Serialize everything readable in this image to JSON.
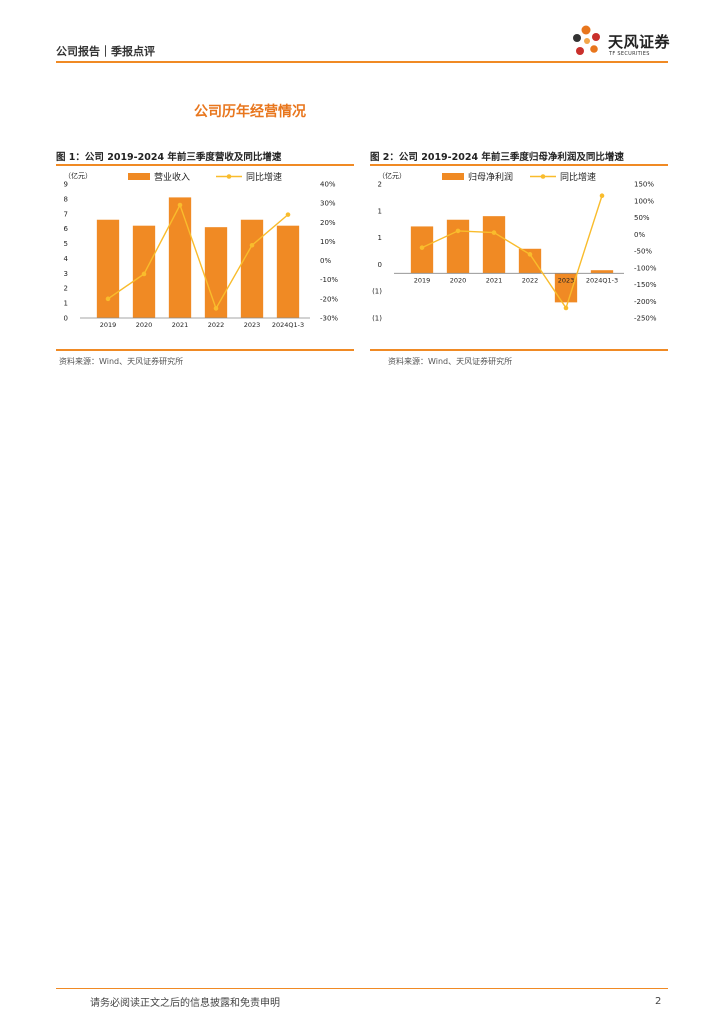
{
  "header": {
    "left_text": "公司报告｜季报点评",
    "brand_name": "天风证券",
    "brand_en": "TF SECURITIES",
    "accent": "#f08a24"
  },
  "section_title": "公司历年经营情况",
  "figures": [
    {
      "title": "图 1：公司 2019-2024 年前三季度营收及同比增速",
      "source": "资料来源：Wind、天风证券研究所"
    },
    {
      "title": "图 2：公司 2019-2024 年前三季度归母净利润及同比增速",
      "source": "资料来源：Wind、天风证券研究所"
    }
  ],
  "chart_data": [
    {
      "type": "bar",
      "unit_label": "（亿元）",
      "categories": [
        "2019",
        "2020",
        "2021",
        "2022",
        "2023",
        "2024Q1-3"
      ],
      "series": [
        {
          "name": "营业收入",
          "type": "bar",
          "axis": "left",
          "color": "#f08a24",
          "values": [
            6.6,
            6.2,
            8.1,
            6.1,
            6.6,
            6.2
          ]
        },
        {
          "name": "同比增速",
          "type": "line",
          "axis": "right",
          "color": "#f9bc2c",
          "values": [
            -20,
            -7,
            29,
            -25,
            8,
            24
          ]
        }
      ],
      "left_axis": {
        "ylim": [
          0,
          9
        ],
        "ticks": [
          "0",
          "1",
          "2",
          "3",
          "4",
          "5",
          "6",
          "7",
          "8",
          "9"
        ]
      },
      "right_axis": {
        "ylim": [
          -30,
          40
        ],
        "ticks": [
          "-30%",
          "-20%",
          "-10%",
          "0%",
          "10%",
          "20%",
          "30%",
          "40%"
        ]
      },
      "legend": "top"
    },
    {
      "type": "bar",
      "unit_label": "（亿元）",
      "categories": [
        "2019",
        "2020",
        "2021",
        "2022",
        "2023",
        "2024Q1-3"
      ],
      "series": [
        {
          "name": "归母净利润",
          "type": "bar",
          "axis": "left",
          "color": "#f08a24",
          "values": [
            1.05,
            1.2,
            1.28,
            0.55,
            -0.65,
            0.07
          ]
        },
        {
          "name": "同比增速",
          "type": "line",
          "axis": "right",
          "color": "#f9bc2c",
          "values": [
            -40,
            10,
            5,
            -60,
            -220,
            115
          ]
        }
      ],
      "left_axis": {
        "ylim": [
          -1,
          2
        ],
        "ticks": [
          "(1)",
          "(1)",
          "0",
          "1",
          "1",
          "2"
        ]
      },
      "right_axis": {
        "ylim": [
          -250,
          150
        ],
        "ticks": [
          "-250%",
          "-200%",
          "-150%",
          "-100%",
          "-50%",
          "0%",
          "50%",
          "100%",
          "150%"
        ]
      },
      "legend": "top"
    }
  ],
  "footer": {
    "disclaimer": "请务必阅读正文之后的信息披露和免责申明",
    "page_number": "2"
  }
}
